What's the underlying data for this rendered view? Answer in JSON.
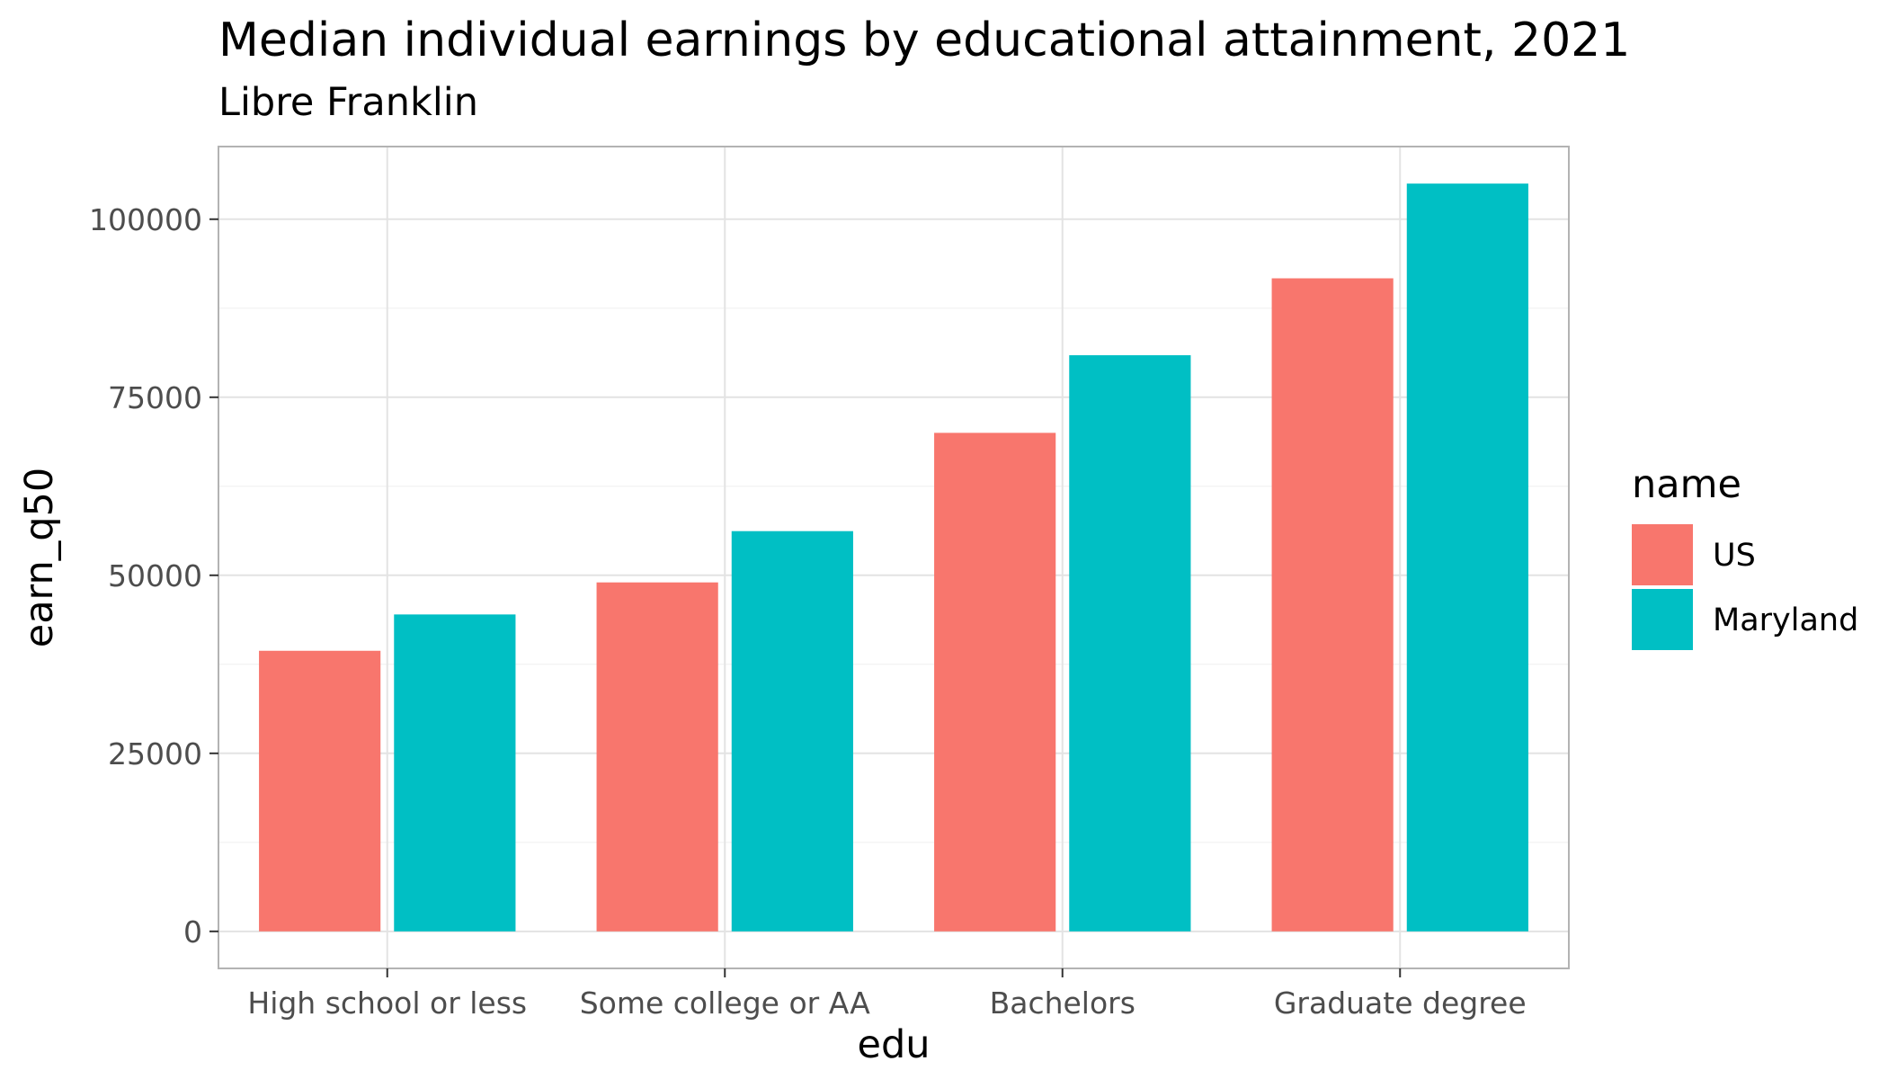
{
  "chart_data": {
    "type": "bar",
    "title": "Median individual earnings by educational attainment, 2021",
    "subtitle": "Libre Franklin",
    "xlabel": "edu",
    "ylabel": "earn_q50",
    "categories": [
      "High school or less",
      "Some college or AA",
      "Bachelors",
      "Graduate degree"
    ],
    "series": [
      {
        "name": "US",
        "color": "#F8766D",
        "values": [
          39400,
          49000,
          70000,
          91700
        ]
      },
      {
        "name": "Maryland",
        "color": "#00BFC4",
        "values": [
          44500,
          56200,
          80900,
          105000
        ]
      }
    ],
    "ylim": [
      -5200,
      110200
    ],
    "yticks": [
      0,
      25000,
      50000,
      75000,
      100000
    ],
    "ytick_labels": [
      "0",
      "25000",
      "50000",
      "75000",
      "100000"
    ],
    "grid": true,
    "legend": {
      "title": "name",
      "position": "right"
    }
  }
}
